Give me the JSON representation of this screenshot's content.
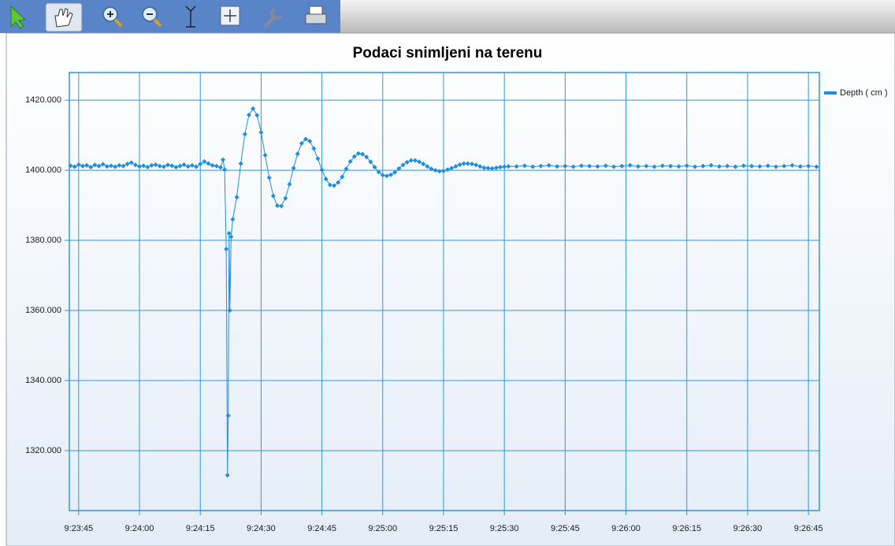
{
  "chart_data": {
    "type": "line",
    "title": "Podaci snimljeni na terenu",
    "xlim": [
      33822.7,
      34007.7
    ],
    "xticks": [
      {
        "value": 33825,
        "label": "9:23:45"
      },
      {
        "value": 33840,
        "label": "9:24:00"
      },
      {
        "value": 33855,
        "label": "9:24:15"
      },
      {
        "value": 33870,
        "label": "9:24:30"
      },
      {
        "value": 33885,
        "label": "9:24:45"
      },
      {
        "value": 33900,
        "label": "9:25:00"
      },
      {
        "value": 33915,
        "label": "9:25:15"
      },
      {
        "value": 33930,
        "label": "9:25:30"
      },
      {
        "value": 33945,
        "label": "9:25:45"
      },
      {
        "value": 33960,
        "label": "9:26:00"
      },
      {
        "value": 33975,
        "label": "9:26:15"
      },
      {
        "value": 33990,
        "label": "9:26:30"
      },
      {
        "value": 34005,
        "label": "9:26:45"
      }
    ],
    "ylim": [
      1302.9,
      1427.9
    ],
    "yticks": [
      {
        "value": 1320,
        "label": "1320.000"
      },
      {
        "value": 1340,
        "label": "1340.000"
      },
      {
        "value": 1360,
        "label": "1360.000"
      },
      {
        "value": 1380,
        "label": "1380.000"
      },
      {
        "value": 1400,
        "label": "1400.000"
      },
      {
        "value": 1420,
        "label": "1420.000"
      }
    ],
    "grid": true,
    "legend": "right",
    "series": [
      {
        "name": "Depth ( cm )",
        "color": "#1f8ee0",
        "x": [
          33823,
          33824,
          33825,
          33826,
          33827,
          33828,
          33829,
          33830,
          33831,
          33832,
          33833,
          33834,
          33835,
          33836,
          33837,
          33838,
          33839,
          33840,
          33841,
          33842,
          33843,
          33844,
          33845,
          33846,
          33847,
          33848,
          33849,
          33850,
          33851,
          33852,
          33853,
          33854,
          33855,
          33856,
          33857,
          33858,
          33859,
          33860,
          33860.6,
          33861.0,
          33861.4,
          33861.7,
          33861.9,
          33862.1,
          33862.3,
          33862.6,
          33863.0,
          33864,
          33865,
          33866,
          33867,
          33868,
          33869,
          33870,
          33871,
          33872,
          33873,
          33874,
          33875,
          33876,
          33877,
          33878,
          33879,
          33880,
          33881,
          33882,
          33883,
          33884,
          33885,
          33886,
          33887,
          33888,
          33889,
          33890,
          33891,
          33892,
          33893,
          33894,
          33895,
          33896,
          33897,
          33898,
          33899,
          33900,
          33901,
          33902,
          33903,
          33904,
          33905,
          33906,
          33907,
          33908,
          33909,
          33910,
          33911,
          33912,
          33913,
          33914,
          33915,
          33916,
          33917,
          33918,
          33919,
          33920,
          33921,
          33922,
          33923,
          33924,
          33925,
          33926,
          33927,
          33928,
          33929,
          33930,
          33931,
          33933,
          33935,
          33937,
          33939,
          33941,
          33943,
          33945,
          33947,
          33949,
          33951,
          33953,
          33955,
          33957,
          33959,
          33961,
          33963,
          33965,
          33967,
          33969,
          33971,
          33973,
          33975,
          33977,
          33979,
          33981,
          33983,
          33985,
          33987,
          33989,
          33991,
          33993,
          33995,
          33997,
          33999,
          34001,
          34003,
          34005,
          34007
        ],
        "values": [
          1401.3,
          1401.0,
          1401.6,
          1401.2,
          1401.4,
          1400.9,
          1401.5,
          1401.2,
          1401.7,
          1401.1,
          1401.3,
          1401.0,
          1401.4,
          1401.2,
          1401.8,
          1402.2,
          1401.5,
          1401.1,
          1401.3,
          1400.9,
          1401.4,
          1401.6,
          1401.2,
          1401.0,
          1401.5,
          1401.3,
          1400.9,
          1401.2,
          1401.6,
          1401.1,
          1401.4,
          1401.0,
          1401.8,
          1402.5,
          1401.9,
          1401.4,
          1401.2,
          1400.8,
          1403.0,
          1400.2,
          1377.5,
          1313.0,
          1330.0,
          1382.0,
          1360.0,
          1381.0,
          1386.0,
          1392.3,
          1401.9,
          1410.3,
          1415.8,
          1417.6,
          1415.7,
          1410.8,
          1404.3,
          1397.9,
          1392.7,
          1389.9,
          1389.8,
          1392.0,
          1396.0,
          1400.6,
          1404.7,
          1407.7,
          1408.9,
          1408.3,
          1406.2,
          1403.3,
          1400.1,
          1397.5,
          1395.8,
          1395.6,
          1396.5,
          1398.1,
          1400.4,
          1402.5,
          1403.9,
          1404.8,
          1404.6,
          1403.8,
          1402.4,
          1400.9,
          1399.5,
          1398.6,
          1398.4,
          1398.7,
          1399.4,
          1400.5,
          1401.5,
          1402.3,
          1402.8,
          1402.8,
          1402.4,
          1401.8,
          1401.1,
          1400.4,
          1400.0,
          1399.7,
          1399.8,
          1400.2,
          1400.6,
          1401.1,
          1401.6,
          1401.9,
          1401.9,
          1401.8,
          1401.5,
          1401.1,
          1400.7,
          1400.6,
          1400.5,
          1400.7,
          1400.9,
          1401.0,
          1401.1,
          1401.1,
          1401.3,
          1401.0,
          1401.2,
          1401.4,
          1401.1,
          1401.2,
          1401.0,
          1401.3,
          1401.2,
          1401.1,
          1401.3,
          1401.0,
          1401.2,
          1401.4,
          1401.1,
          1401.2,
          1401.0,
          1401.3,
          1401.2,
          1401.1,
          1401.3,
          1401.0,
          1401.2,
          1401.4,
          1401.1,
          1401.2,
          1401.0,
          1401.3,
          1401.2,
          1401.1,
          1401.3,
          1401.0,
          1401.2,
          1401.4,
          1401.1,
          1401.2,
          1401.0
        ]
      }
    ]
  }
}
